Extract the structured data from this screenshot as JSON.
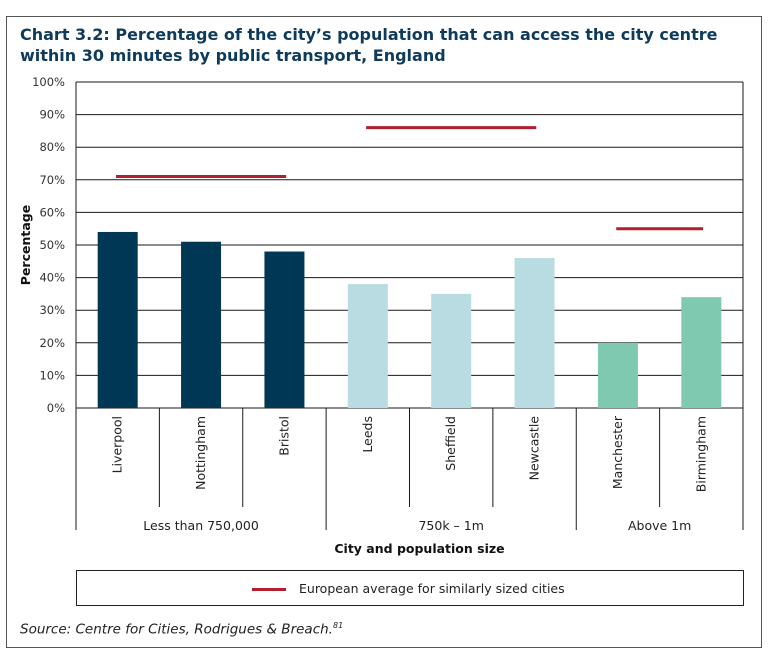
{
  "title": "Chart 3.2: Percentage of the city’s population that can access the city centre within 30 minutes by public transport, England",
  "source": {
    "text": "Source: Centre for Cities, Rodrigues & Breach.",
    "footnote": "81"
  },
  "legend": {
    "label": "European average for similarly sized cities",
    "line_color": "#b21f2d"
  },
  "chart_data": {
    "type": "bar",
    "ylabel": "Percentage",
    "xlabel": "City and population size",
    "ylim": [
      0,
      100
    ],
    "yticks": [
      "0%",
      "10%",
      "20%",
      "30%",
      "40%",
      "50%",
      "60%",
      "70%",
      "80%",
      "90%",
      "100%"
    ],
    "categories": [
      "Liverpool",
      "Nottingham",
      "Bristol",
      "Leeds",
      "Sheffield",
      "Newcastle",
      "Manchester",
      "Birmingham"
    ],
    "values": [
      54,
      51,
      48,
      38,
      35,
      46,
      20,
      34
    ],
    "colors": [
      "#003755",
      "#003755",
      "#003755",
      "#b9dce2",
      "#b9dce2",
      "#b9dce2",
      "#7fc9b0",
      "#7fc9b0"
    ],
    "groups": [
      {
        "label": "Less than 750,000",
        "count": 3,
        "european_average": 71
      },
      {
        "label": "750k – 1m",
        "count": 3,
        "european_average": 86
      },
      {
        "label": "Above 1m",
        "count": 2,
        "european_average": 55
      }
    ]
  }
}
